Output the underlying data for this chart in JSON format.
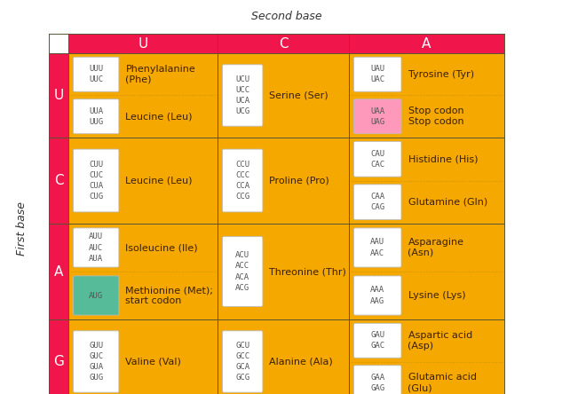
{
  "title_second_base": "Second base",
  "label_first_base": "First base",
  "col_headers": [
    "U",
    "C",
    "A"
  ],
  "row_headers": [
    "U",
    "C",
    "A",
    "G"
  ],
  "bg_color": "#F5A800",
  "header_bg": "#F0154A",
  "header_text_color": "#FFFFFF",
  "codon_box_bg": "#FFFFFF",
  "codon_text_color": "#555555",
  "amino_text_color": "#3D2000",
  "stop_codon_bg": "#FF99BB",
  "start_codon_bg": "#55BB99",
  "cells": [
    {
      "row": 0,
      "col": 0,
      "groups": [
        {
          "codons": [
            "UUU",
            "UUC"
          ],
          "special": "none",
          "amino": "Phenylalanine\n(Phe)"
        },
        {
          "codons": [
            "UUA",
            "UUG"
          ],
          "special": "none",
          "amino": "Leucine (Leu)"
        }
      ]
    },
    {
      "row": 0,
      "col": 1,
      "groups": [
        {
          "codons": [
            "UCU",
            "UCC",
            "UCA",
            "UCG"
          ],
          "special": "none",
          "amino": "Serine (Ser)"
        }
      ]
    },
    {
      "row": 0,
      "col": 2,
      "groups": [
        {
          "codons": [
            "UAU",
            "UAC"
          ],
          "special": "none",
          "amino": "Tyrosine (Tyr)"
        },
        {
          "codons": [
            "UAA",
            "UAG"
          ],
          "special": "stop",
          "amino": "Stop codon\nStop codon"
        }
      ]
    },
    {
      "row": 1,
      "col": 0,
      "groups": [
        {
          "codons": [
            "CUU",
            "CUC",
            "CUA",
            "CUG"
          ],
          "special": "none",
          "amino": "Leucine (Leu)"
        }
      ]
    },
    {
      "row": 1,
      "col": 1,
      "groups": [
        {
          "codons": [
            "CCU",
            "CCC",
            "CCA",
            "CCG"
          ],
          "special": "none",
          "amino": "Proline (Pro)"
        }
      ]
    },
    {
      "row": 1,
      "col": 2,
      "groups": [
        {
          "codons": [
            "CAU",
            "CAC"
          ],
          "special": "none",
          "amino": "Histidine (His)"
        },
        {
          "codons": [
            "CAA",
            "CAG"
          ],
          "special": "none",
          "amino": "Glutamine (Gln)"
        }
      ]
    },
    {
      "row": 2,
      "col": 0,
      "groups": [
        {
          "codons": [
            "AUU",
            "AUC",
            "AUA"
          ],
          "special": "none",
          "amino": "Isoleucine (Ile)"
        },
        {
          "codons": [
            "AUG"
          ],
          "special": "start",
          "amino": "Methionine (Met);\nstart codon"
        }
      ]
    },
    {
      "row": 2,
      "col": 1,
      "groups": [
        {
          "codons": [
            "ACU",
            "ACC",
            "ACA",
            "ACG"
          ],
          "special": "none",
          "amino": "Threonine (Thr)"
        }
      ]
    },
    {
      "row": 2,
      "col": 2,
      "groups": [
        {
          "codons": [
            "AAU",
            "AAC"
          ],
          "special": "none",
          "amino": "Asparagine\n(Asn)"
        },
        {
          "codons": [
            "AAA",
            "AAG"
          ],
          "special": "none",
          "amino": "Lysine (Lys)"
        }
      ]
    },
    {
      "row": 3,
      "col": 0,
      "groups": [
        {
          "codons": [
            "GUU",
            "GUC",
            "GUA",
            "GUG"
          ],
          "special": "none",
          "amino": "Valine (Val)"
        }
      ]
    },
    {
      "row": 3,
      "col": 1,
      "groups": [
        {
          "codons": [
            "GCU",
            "GCC",
            "GCA",
            "GCG"
          ],
          "special": "none",
          "amino": "Alanine (Ala)"
        }
      ]
    },
    {
      "row": 3,
      "col": 2,
      "groups": [
        {
          "codons": [
            "GAU",
            "GAC"
          ],
          "special": "none",
          "amino": "Aspartic acid\n(Asp)"
        },
        {
          "codons": [
            "GAA",
            "GAG"
          ],
          "special": "none",
          "amino": "Glutamic acid\n(Glu)"
        }
      ]
    }
  ]
}
